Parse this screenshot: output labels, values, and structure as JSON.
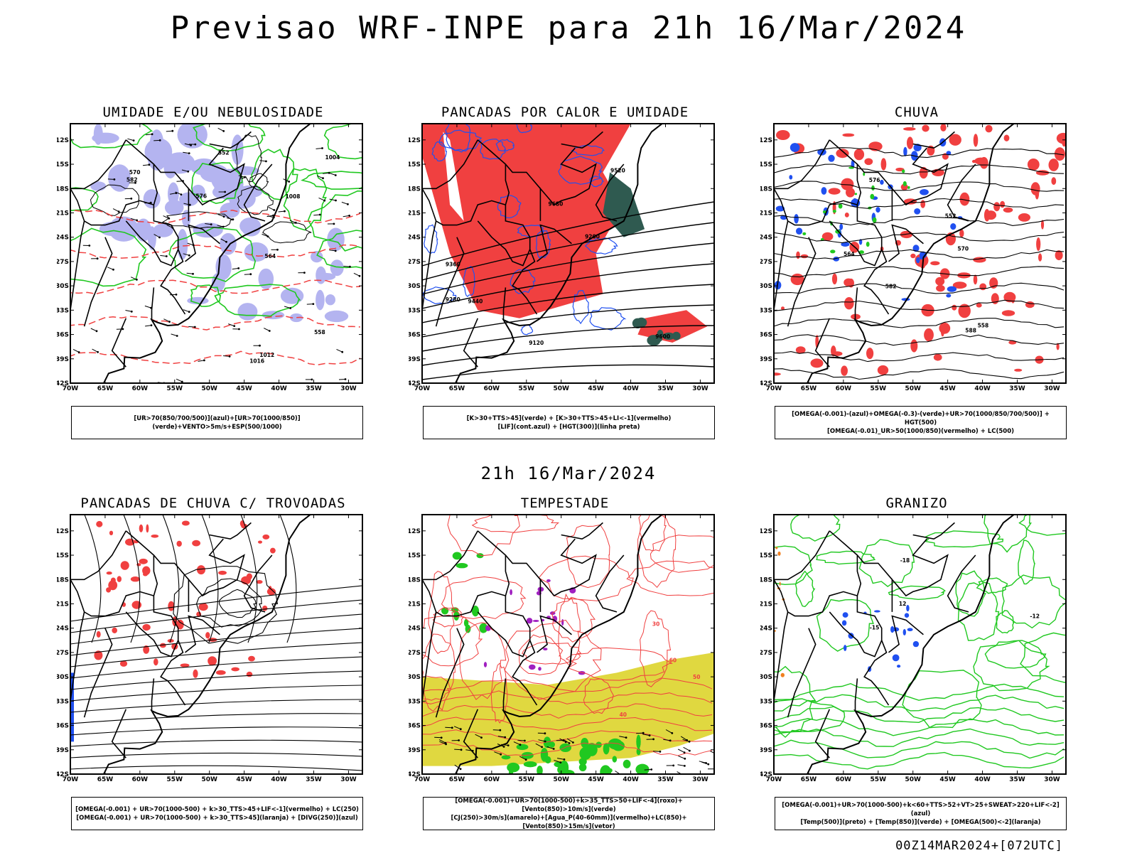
{
  "title": "Previsao WRF-INPE  para 21h 16/Mar/2024",
  "subtitle": "21h 16/Mar/2024",
  "footer": "00Z14MAR2024+[072UTC]",
  "axes": {
    "lat_ticks": [
      "12S",
      "15S",
      "18S",
      "21S",
      "24S",
      "27S",
      "30S",
      "33S",
      "36S",
      "39S",
      "42S"
    ],
    "lon_ticks": [
      "70W",
      "65W",
      "60W",
      "55W",
      "50W",
      "45W",
      "40W",
      "35W",
      "30W"
    ]
  },
  "colors": {
    "red": "#f04040",
    "green": "#20c820",
    "blue": "#2050f0",
    "lavender": "#b4b4f0",
    "yellow": "#e0d840",
    "purple": "#a020c0",
    "darkgreen": "#2f5a50",
    "orange": "#f08020"
  },
  "panels": [
    {
      "title": "UMIDADE E/OU NEBULOSIDADE",
      "legend": [
        "[UR>70(850/700/500)](azul)+[UR>70(1000/850)](verde)+VENTO>5m/s+ESP(500/1000)"
      ],
      "contour_labels": [
        "1012",
        "1008",
        "1004",
        "1016",
        "570",
        "576",
        "582",
        "564",
        "558",
        "552"
      ]
    },
    {
      "title": "PANCADAS POR CALOR E UMIDADE",
      "legend": [
        "[K>30+TTS>45](verde) + [K>30+TTS>45+LI<-1](vermelho)",
        "[LIF](cont.azul) + [HGT(300)](linha preta)"
      ],
      "contour_labels": [
        "9680",
        "9600",
        "9520",
        "9440",
        "9360",
        "9280",
        "9200",
        "9120"
      ]
    },
    {
      "title": "CHUVA",
      "legend": [
        "[OMEGA(-0.001)-(azul)+OMEGA(-0.3)-(verde)+UR>70(1000/850/700/500)] + HGT(500)",
        "[OMEGA(-0.01)_UR>50(1000/850)(vermelho) + LC(500)"
      ],
      "contour_labels": [
        "582",
        "576",
        "570",
        "564",
        "558",
        "552",
        "588"
      ]
    },
    {
      "title": "PANCADAS DE CHUVA C/ TROVOADAS",
      "legend": [
        "[OMEGA(-0.001) + UR>70(1000-500) + k>30_TTS>45+LIF<-1](vermelho) + LC(250)",
        "[OMEGA(-0.001) + UR>70(1000-500) + k>30_TTS>45](laranja) + [DIVG(250)](azul)"
      ],
      "contour_labels": []
    },
    {
      "title": "TEMPESTADE",
      "legend": [
        "[OMEGA(-0.001)+UR>70(1000-500)+k>35_TTS>50+LIF<-4](roxo)+[Vento(850)>10m/s](verde)",
        "[CJ(250)>30m/s](amarelo)+[Agua_P(40-60mm)](vermelho)+LC(850)+[Vento(850)>15m/s](vetor)"
      ],
      "contour_labels": [
        "40",
        "50",
        "60",
        "30"
      ]
    },
    {
      "title": "GRANIZO",
      "legend": [
        "[OMEGA(-0.001)+UR>70(1000-500)+k<60+TTS>52+VT>25+SWEAT>220+LIF<-2](azul)",
        "[Temp(500)](preto) + [Temp(850)](verde) + [OMEGA(500)<-2](laranja)"
      ],
      "contour_labels": [
        "-12",
        "-15",
        "-18",
        "12"
      ]
    }
  ]
}
